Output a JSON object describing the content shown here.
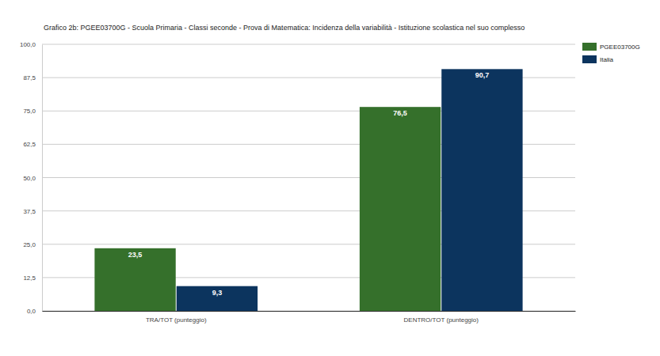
{
  "chart_data": {
    "type": "bar",
    "title": "Grafico 2b: PGEE03700G - Scuola Primaria - Classi seconde - Prova di Matematica: Incidenza della variabilità - Istituzione scolastica nel suo complesso",
    "categories": [
      "TRA/TOT (punteggio)",
      "DENTRO/TOT (punteggio)"
    ],
    "series": [
      {
        "name": "PGEE03700G",
        "color": "#35702b",
        "values": [
          23.5,
          76.5
        ],
        "value_labels": [
          "23,5",
          "76,5"
        ]
      },
      {
        "name": "Italia",
        "color": "#0c345e",
        "values": [
          9.3,
          90.7
        ],
        "value_labels": [
          "9,3",
          "90,7"
        ]
      }
    ],
    "ylim": [
      0,
      100
    ],
    "yticks": [
      {
        "value": 0,
        "label": "0,0"
      },
      {
        "value": 12.5,
        "label": "12,5"
      },
      {
        "value": 25,
        "label": "25,0"
      },
      {
        "value": 37.5,
        "label": "37,5"
      },
      {
        "value": 50,
        "label": "50,0"
      },
      {
        "value": 62.5,
        "label": "62,5"
      },
      {
        "value": 75,
        "label": "75,0"
      },
      {
        "value": 87.5,
        "label": "87,5"
      },
      {
        "value": 100,
        "label": "100,0"
      }
    ],
    "grid": true,
    "legend": "top-right",
    "data_labels": true
  }
}
